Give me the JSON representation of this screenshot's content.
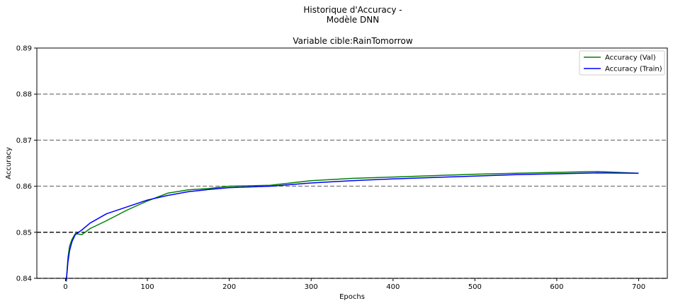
{
  "chart_data": {
    "type": "line",
    "suptitle_lines": [
      "Historique d'Accuracy -",
      "Modèle DNN"
    ],
    "title": "Variable cible:RainTomorrow",
    "xlabel": "Epochs",
    "ylabel": "Accuracy",
    "xlim": [
      -35,
      735
    ],
    "ylim": [
      0.84,
      0.89
    ],
    "xticks": [
      0,
      100,
      200,
      300,
      400,
      500,
      600,
      700
    ],
    "yticks": [
      0.84,
      0.85,
      0.86,
      0.87,
      0.88,
      0.89
    ],
    "xtick_labels": [
      "0",
      "100",
      "200",
      "300",
      "400",
      "500",
      "600",
      "700"
    ],
    "ytick_labels": [
      "0.84",
      "0.85",
      "0.86",
      "0.87",
      "0.88",
      "0.89"
    ],
    "reference_lines": [
      {
        "y": 0.85,
        "color": "#000000",
        "style": "dashed"
      },
      {
        "y": 0.86,
        "color": "#808080",
        "style": "dashed"
      },
      {
        "y": 0.87,
        "color": "#808080",
        "style": "dashed"
      },
      {
        "y": 0.88,
        "color": "#808080",
        "style": "dashed"
      },
      {
        "y": 0.84,
        "color": "#808080",
        "style": "dashed"
      }
    ],
    "legend_position": "top-right",
    "series": [
      {
        "name": "Accuracy (Val)",
        "color": "#008000",
        "x": [
          1,
          3,
          5,
          8,
          12,
          20,
          30,
          50,
          75,
          100,
          125,
          150,
          175,
          200,
          250,
          300,
          350,
          400,
          450,
          500,
          550,
          600,
          650,
          700
        ],
        "y": [
          0.8393,
          0.8445,
          0.847,
          0.8485,
          0.8497,
          0.8495,
          0.8508,
          0.8525,
          0.8548,
          0.8568,
          0.8585,
          0.8592,
          0.8595,
          0.86,
          0.8602,
          0.8612,
          0.8617,
          0.862,
          0.8623,
          0.8626,
          0.8628,
          0.863,
          0.8632,
          0.8628
        ]
      },
      {
        "name": "Accuracy (Train)",
        "color": "#0000ff",
        "x": [
          1,
          3,
          5,
          8,
          12,
          20,
          30,
          50,
          75,
          100,
          125,
          150,
          175,
          200,
          250,
          300,
          350,
          400,
          450,
          500,
          550,
          600,
          650,
          700
        ],
        "y": [
          0.8395,
          0.8435,
          0.846,
          0.848,
          0.8495,
          0.8505,
          0.852,
          0.854,
          0.8555,
          0.857,
          0.858,
          0.8588,
          0.8593,
          0.8597,
          0.86,
          0.8607,
          0.8612,
          0.8616,
          0.8619,
          0.8622,
          0.8625,
          0.8627,
          0.8629,
          0.8628
        ]
      }
    ]
  }
}
